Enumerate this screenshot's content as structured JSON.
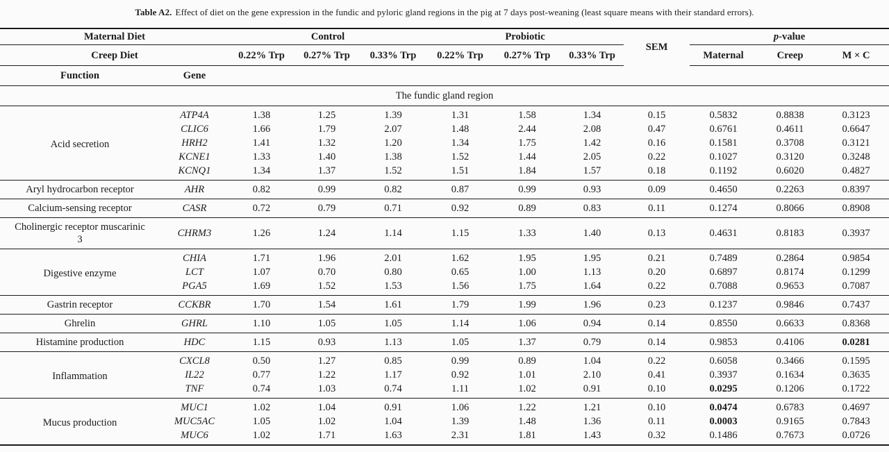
{
  "title": {
    "label": "Table A2.",
    "text": "Effect of diet on the gene expression in the fundic and pyloric gland regions in the pig at 7 days post-weaning (least square means with their standard errors)."
  },
  "header": {
    "maternal_diet": "Maternal Diet",
    "creep_diet": "Creep Diet",
    "control": "Control",
    "probiotic": "Probiotic",
    "sem": "SEM",
    "p_value_p": "p",
    "p_value_rest": "-value",
    "function": "Function",
    "gene": "Gene",
    "trp_levels": [
      "0.22% Trp",
      "0.27% Trp",
      "0.33% Trp",
      "0.22% Trp",
      "0.27% Trp",
      "0.33% Trp"
    ],
    "p_cols": [
      "Maternal",
      "Creep",
      "M × C"
    ]
  },
  "section": "The fundic gland region",
  "table": {
    "groups": [
      {
        "function": "Acid secretion",
        "rows": [
          {
            "gene": "ATP4A",
            "values": [
              "1.38",
              "1.25",
              "1.39",
              "1.31",
              "1.58",
              "1.34",
              "0.15",
              "0.5832",
              "0.8838",
              "0.3123"
            ],
            "bold": []
          },
          {
            "gene": "CLIC6",
            "values": [
              "1.66",
              "1.79",
              "2.07",
              "1.48",
              "2.44",
              "2.08",
              "0.47",
              "0.6761",
              "0.4611",
              "0.6647"
            ],
            "bold": []
          },
          {
            "gene": "HRH2",
            "values": [
              "1.41",
              "1.32",
              "1.20",
              "1.34",
              "1.75",
              "1.42",
              "0.16",
              "0.1581",
              "0.3708",
              "0.3121"
            ],
            "bold": []
          },
          {
            "gene": "KCNE1",
            "values": [
              "1.33",
              "1.40",
              "1.38",
              "1.52",
              "1.44",
              "2.05",
              "0.22",
              "0.1027",
              "0.3120",
              "0.3248"
            ],
            "bold": []
          },
          {
            "gene": "KCNQ1",
            "values": [
              "1.34",
              "1.37",
              "1.52",
              "1.51",
              "1.84",
              "1.57",
              "0.18",
              "0.1192",
              "0.6020",
              "0.4827"
            ],
            "bold": []
          }
        ]
      },
      {
        "function": "Aryl hydrocarbon receptor",
        "rows": [
          {
            "gene": "AHR",
            "values": [
              "0.82",
              "0.99",
              "0.82",
              "0.87",
              "0.99",
              "0.93",
              "0.09",
              "0.4650",
              "0.2263",
              "0.8397"
            ],
            "bold": []
          }
        ]
      },
      {
        "function": "Calcium-sensing receptor",
        "rows": [
          {
            "gene": "CASR",
            "values": [
              "0.72",
              "0.79",
              "0.71",
              "0.92",
              "0.89",
              "0.83",
              "0.11",
              "0.1274",
              "0.8066",
              "0.8908"
            ],
            "bold": []
          }
        ]
      },
      {
        "function": "Cholinergic receptor muscarinic 3",
        "rows": [
          {
            "gene": "CHRM3",
            "values": [
              "1.26",
              "1.24",
              "1.14",
              "1.15",
              "1.33",
              "1.40",
              "0.13",
              "0.4631",
              "0.8183",
              "0.3937"
            ],
            "bold": []
          }
        ]
      },
      {
        "function": "Digestive enzyme",
        "rows": [
          {
            "gene": "CHIA",
            "values": [
              "1.71",
              "1.96",
              "2.01",
              "1.62",
              "1.95",
              "1.95",
              "0.21",
              "0.7489",
              "0.2864",
              "0.9854"
            ],
            "bold": []
          },
          {
            "gene": "LCT",
            "values": [
              "1.07",
              "0.70",
              "0.80",
              "0.65",
              "1.00",
              "1.13",
              "0.20",
              "0.6897",
              "0.8174",
              "0.1299"
            ],
            "bold": []
          },
          {
            "gene": "PGA5",
            "values": [
              "1.69",
              "1.52",
              "1.53",
              "1.56",
              "1.75",
              "1.64",
              "0.22",
              "0.7088",
              "0.9653",
              "0.7087"
            ],
            "bold": []
          }
        ]
      },
      {
        "function": "Gastrin receptor",
        "rows": [
          {
            "gene": "CCKBR",
            "values": [
              "1.70",
              "1.54",
              "1.61",
              "1.79",
              "1.99",
              "1.96",
              "0.23",
              "0.1237",
              "0.9846",
              "0.7437"
            ],
            "bold": []
          }
        ]
      },
      {
        "function": "Ghrelin",
        "rows": [
          {
            "gene": "GHRL",
            "values": [
              "1.10",
              "1.05",
              "1.05",
              "1.14",
              "1.06",
              "0.94",
              "0.14",
              "0.8550",
              "0.6633",
              "0.8368"
            ],
            "bold": []
          }
        ]
      },
      {
        "function": "Histamine production",
        "rows": [
          {
            "gene": "HDC",
            "values": [
              "1.15",
              "0.93",
              "1.13",
              "1.05",
              "1.37",
              "0.79",
              "0.14",
              "0.9853",
              "0.4106",
              "0.0281"
            ],
            "bold": [
              9
            ]
          }
        ]
      },
      {
        "function": "Inflammation",
        "rows": [
          {
            "gene": "CXCL8",
            "values": [
              "0.50",
              "1.27",
              "0.85",
              "0.99",
              "0.89",
              "1.04",
              "0.22",
              "0.6058",
              "0.3466",
              "0.1595"
            ],
            "bold": []
          },
          {
            "gene": "IL22",
            "values": [
              "0.77",
              "1.22",
              "1.17",
              "0.92",
              "1.01",
              "2.10",
              "0.41",
              "0.3937",
              "0.1634",
              "0.3635"
            ],
            "bold": []
          },
          {
            "gene": "TNF",
            "values": [
              "0.74",
              "1.03",
              "0.74",
              "1.11",
              "1.02",
              "0.91",
              "0.10",
              "0.0295",
              "0.1206",
              "0.1722"
            ],
            "bold": [
              7
            ]
          }
        ]
      },
      {
        "function": "Mucus production",
        "rows": [
          {
            "gene": "MUC1",
            "values": [
              "1.02",
              "1.04",
              "0.91",
              "1.06",
              "1.22",
              "1.21",
              "0.10",
              "0.0474",
              "0.6783",
              "0.4697"
            ],
            "bold": [
              7
            ]
          },
          {
            "gene": "MUC5AC",
            "values": [
              "1.05",
              "1.02",
              "1.04",
              "1.39",
              "1.48",
              "1.36",
              "0.11",
              "0.0003",
              "0.9165",
              "0.7843"
            ],
            "bold": [
              7
            ]
          },
          {
            "gene": "MUC6",
            "values": [
              "1.02",
              "1.71",
              "1.63",
              "2.31",
              "1.81",
              "1.43",
              "0.32",
              "0.1486",
              "0.7673",
              "0.0726"
            ],
            "bold": []
          }
        ]
      }
    ]
  }
}
